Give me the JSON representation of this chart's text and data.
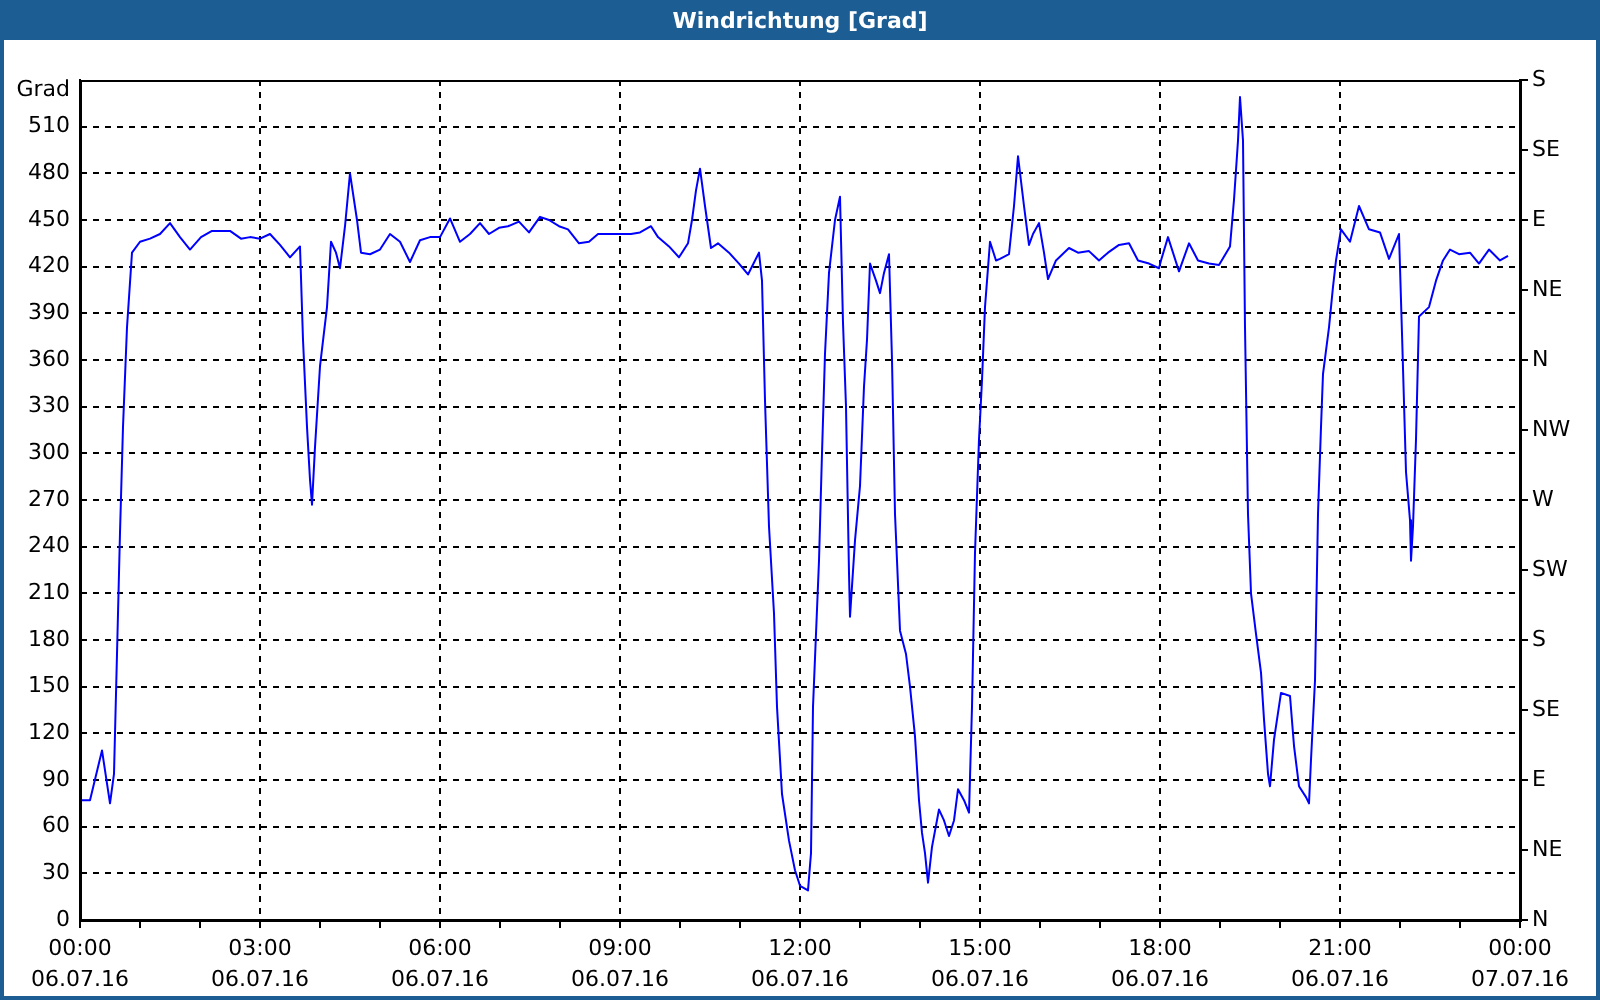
{
  "chart_data": {
    "type": "line",
    "title": "Windrichtung [Grad]",
    "ylabel": "Grad",
    "x": [
      "--07-06T00:00",
      "--07-06T00:10",
      "--07-06T00:22",
      "--07-06T00:30",
      "--07-06T00:34",
      "--07-06T00:37",
      "--07-06T00:40",
      "--07-06T00:43",
      "--07-06T00:47",
      "--07-06T00:52",
      "--07-06T01:00",
      "--07-06T01:10",
      "--07-06T01:20",
      "--07-06T01:30",
      "--07-06T01:40",
      "--07-06T01:50",
      "--07-06T02:01",
      "--07-06T02:12",
      "--07-06T02:30",
      "--07-06T02:41",
      "--07-06T02:50",
      "--07-06T03:00",
      "--07-06T03:10",
      "--07-06T03:20",
      "--07-06T03:30",
      "--07-06T03:40",
      "--07-06T03:43",
      "--07-06T03:47",
      "--07-06T03:50",
      "--07-06T03:52",
      "--07-06T03:55",
      "--07-06T04:00",
      "--07-06T04:07",
      "--07-06T04:11",
      "--07-06T04:16",
      "--07-06T04:20",
      "--07-06T04:25",
      "--07-06T04:30",
      "--07-06T04:37",
      "--07-06T04:41",
      "--07-06T04:50",
      "--07-06T05:00",
      "--07-06T05:10",
      "--07-06T05:20",
      "--07-06T05:30",
      "--07-06T05:40",
      "--07-06T05:50",
      "--07-06T06:00",
      "--07-06T06:10",
      "--07-06T06:20",
      "--07-06T06:30",
      "--07-06T06:40",
      "--07-06T06:49",
      "--07-06T06:59",
      "--07-06T07:08",
      "--07-06T07:19",
      "--07-06T07:29",
      "--07-06T07:40",
      "--07-06T07:49",
      "--07-06T07:59",
      "--07-06T08:08",
      "--07-06T08:19",
      "--07-06T08:29",
      "--07-06T08:38",
      "--07-06T09:11",
      "--07-06T09:20",
      "--07-06T09:31",
      "--07-06T09:38",
      "--07-06T09:49",
      "--07-06T09:59",
      "--07-06T10:08",
      "--07-06T10:12",
      "--07-06T10:16",
      "--07-06T10:20",
      "--07-06T10:25",
      "--07-06T10:31",
      "--07-06T10:38",
      "--07-06T10:49",
      "--07-06T10:59",
      "--07-06T11:08",
      "--07-06T11:19",
      "--07-06T11:22",
      "--07-06T11:25",
      "--07-06T11:29",
      "--07-06T11:34",
      "--07-06T11:37",
      "--07-06T11:42",
      "--07-06T11:49",
      "--07-06T11:55",
      "--07-06T12:00",
      "--07-06T12:08",
      "--07-06T12:11",
      "--07-06T12:13",
      "--07-06T12:19",
      "--07-06T12:22",
      "--07-06T12:25",
      "--07-06T12:29",
      "--07-06T12:35",
      "--07-06T12:40",
      "--07-06T12:43",
      "--07-06T12:46",
      "--07-06T12:49",
      "--07-06T12:50",
      "--07-06T12:55",
      "--07-06T13:00",
      "--07-06T13:04",
      "--07-06T13:07",
      "--07-06T13:10",
      "--07-06T13:16",
      "--07-06T13:20",
      "--07-06T13:24",
      "--07-06T13:29",
      "--07-06T13:32",
      "--07-06T13:35",
      "--07-06T13:40",
      "--07-06T13:46",
      "--07-06T13:50",
      "--07-06T13:55",
      "--07-06T13:59",
      "--07-06T14:02",
      "--07-06T14:05",
      "--07-06T14:08",
      "--07-06T14:12",
      "--07-06T14:19",
      "--07-06T14:24",
      "--07-06T14:29",
      "--07-06T14:34",
      "--07-06T14:38",
      "--07-06T14:44",
      "--07-06T14:49",
      "--07-06T14:52",
      "--07-06T14:55",
      "--07-06T14:59",
      "--07-06T15:02",
      "--07-06T15:05",
      "--07-06T15:10",
      "--07-06T15:16",
      "--07-06T15:20",
      "--07-06T15:29",
      "--07-06T15:34",
      "--07-06T15:38",
      "--07-06T15:44",
      "--07-06T15:49",
      "--07-06T15:53",
      "--07-06T15:59",
      "--07-06T16:04",
      "--07-06T16:08",
      "--07-06T16:16",
      "--07-06T16:29",
      "--07-06T16:38",
      "--07-06T16:49",
      "--07-06T16:59",
      "--07-06T17:08",
      "--07-06T17:19",
      "--07-06T17:29",
      "--07-06T17:38",
      "--07-06T17:49",
      "--07-06T17:59",
      "--07-06T18:01",
      "--07-06T18:08",
      "--07-06T18:19",
      "--07-06T18:29",
      "--07-06T18:38",
      "--07-06T18:49",
      "--07-06T18:59",
      "--07-06T19:10",
      "--07-06T19:14",
      "--07-06T19:18",
      "--07-06T19:20",
      "--07-06T19:23",
      "--07-06T19:25",
      "--07-06T19:28",
      "--07-06T19:31",
      "--07-06T19:36",
      "--07-06T19:41",
      "--07-06T19:44",
      "--07-06T19:48",
      "--07-06T19:50",
      "--07-06T19:54",
      "--07-06T20:01",
      "--07-06T20:10",
      "--07-06T20:14",
      "--07-06T20:19",
      "--07-06T20:26",
      "--07-06T20:29",
      "--07-06T20:31",
      "--07-06T20:35",
      "--07-06T20:38",
      "--07-06T20:41",
      "--07-06T20:43",
      "--07-06T20:46",
      "--07-06T20:49",
      "--07-06T20:53",
      "--07-06T20:56",
      "--07-06T21:01",
      "--07-06T21:10",
      "--07-06T21:19",
      "--07-06T21:29",
      "--07-06T21:40",
      "--07-06T21:49",
      "--07-06T21:59",
      "--07-06T22:02",
      "--07-06T22:06",
      "--07-06T22:10",
      "--07-06T22:11",
      "--07-06T22:13",
      "--07-06T22:16",
      "--07-06T22:19",
      "--07-06T22:29",
      "--07-06T22:36",
      "--07-06T22:43",
      "--07-06T22:50",
      "--07-06T22:59",
      "--07-06T23:10",
      "--07-06T23:19",
      "--07-06T23:29",
      "--07-06T23:40",
      "--07-06T23:48"
    ],
    "values": [
      77,
      77,
      109,
      75,
      94,
      171,
      249,
      317,
      381,
      429,
      436,
      438,
      441,
      448,
      439,
      431,
      439,
      443,
      443,
      438,
      439,
      438,
      441,
      434,
      426,
      433,
      373,
      317,
      283,
      267,
      304,
      356,
      394,
      436,
      429,
      419,
      446,
      480,
      450,
      429,
      428,
      431,
      441,
      436,
      423,
      437,
      439,
      439,
      451,
      436,
      441,
      448,
      441,
      445,
      446,
      449,
      442,
      452,
      450,
      446,
      444,
      435,
      436,
      441,
      441,
      442,
      446,
      439,
      433,
      426,
      435,
      450,
      469,
      483,
      459,
      432,
      435,
      429,
      422,
      415,
      429,
      411,
      334,
      253,
      197,
      137,
      81,
      51,
      32,
      22,
      19,
      43,
      137,
      231,
      300,
      364,
      416,
      450,
      465,
      384,
      330,
      223,
      195,
      244,
      279,
      343,
      373,
      422,
      411,
      403,
      416,
      428,
      360,
      261,
      186,
      171,
      150,
      118,
      77,
      56,
      43,
      24,
      47,
      71,
      64,
      54,
      64,
      84,
      77,
      69,
      137,
      236,
      309,
      347,
      394,
      436,
      424,
      425,
      428,
      459,
      491,
      459,
      434,
      441,
      448,
      429,
      412,
      424,
      432,
      429,
      430,
      424,
      429,
      434,
      435,
      424,
      422,
      419,
      424,
      439,
      417,
      435,
      424,
      422,
      421,
      433,
      463,
      501,
      529,
      501,
      381,
      261,
      210,
      184,
      159,
      129,
      94,
      86,
      116,
      146,
      144,
      112,
      86,
      79,
      75,
      103,
      154,
      261,
      317,
      351,
      366,
      381,
      407,
      424,
      444,
      436,
      459,
      444,
      442,
      425,
      441,
      377,
      288,
      257,
      231,
      253,
      309,
      388,
      394,
      411,
      424,
      431,
      428,
      429,
      422,
      431,
      424,
      427
    ],
    "color": "#0000ff",
    "marker": "none",
    "line_style": "solid",
    "legend": false,
    "grid": true,
    "xlim": [
      "--07-06T00:00",
      "--07-07T00:00"
    ],
    "xticks": [
      {
        "value": "--07-06T00:00",
        "label": "00:00\n06.07.16"
      },
      {
        "value": "--07-06T01:00",
        "label": null
      },
      {
        "value": "--07-06T02:00",
        "label": null
      },
      {
        "value": "--07-06T03:00",
        "label": "03:00\n06.07.16"
      },
      {
        "value": "--07-06T04:00",
        "label": null
      },
      {
        "value": "--07-06T05:00",
        "label": null
      },
      {
        "value": "--07-06T06:00",
        "label": "06:00\n06.07.16"
      },
      {
        "value": "--07-06T07:00",
        "label": null
      },
      {
        "value": "--07-06T08:00",
        "label": null
      },
      {
        "value": "--07-06T09:00",
        "label": "09:00\n06.07.16"
      },
      {
        "value": "--07-06T10:00",
        "label": null
      },
      {
        "value": "--07-06T11:00",
        "label": null
      },
      {
        "value": "--07-06T12:00",
        "label": "12:00\n06.07.16"
      },
      {
        "value": "--07-06T13:00",
        "label": null
      },
      {
        "value": "--07-06T14:00",
        "label": null
      },
      {
        "value": "--07-06T15:00",
        "label": "15:00\n06.07.16"
      },
      {
        "value": "--07-06T16:00",
        "label": null
      },
      {
        "value": "--07-06T17:00",
        "label": null
      },
      {
        "value": "--07-06T18:00",
        "label": "18:00\n06.07.16"
      },
      {
        "value": "--07-06T19:00",
        "label": null
      },
      {
        "value": "--07-06T20:00",
        "label": null
      },
      {
        "value": "--07-06T21:00",
        "label": "21:00\n06.07.16"
      },
      {
        "value": "--07-06T22:00",
        "label": null
      },
      {
        "value": "--07-06T23:00",
        "label": null
      },
      {
        "value": "--07-07T00:00",
        "label": "00:00\n07.07.16"
      }
    ],
    "ylim": [
      0,
      540
    ],
    "yticks": [
      0,
      30,
      60,
      90,
      120,
      150,
      180,
      210,
      240,
      270,
      300,
      330,
      360,
      390,
      420,
      450,
      480,
      510
    ],
    "y2_categories": [
      "S",
      "SE",
      "E",
      "NE",
      "N",
      "NW",
      "W",
      "SW",
      "S",
      "SE",
      "E",
      "NE",
      "N"
    ]
  }
}
